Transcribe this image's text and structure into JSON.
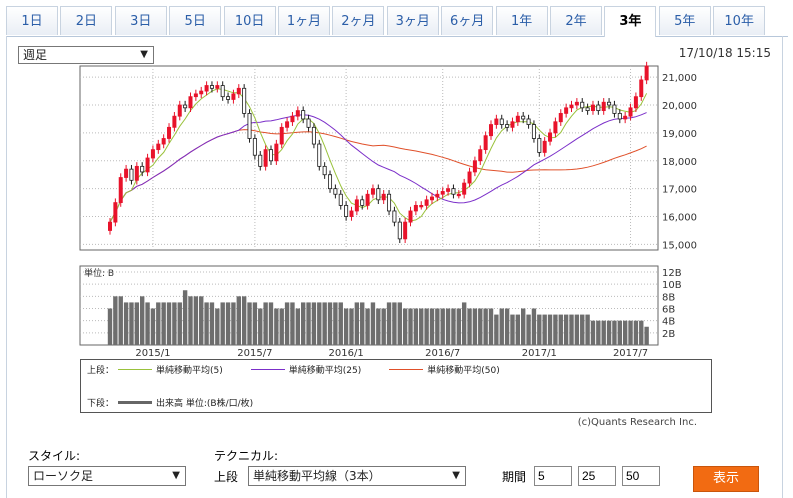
{
  "tabs": [
    {
      "label": "1日"
    },
    {
      "label": "2日"
    },
    {
      "label": "3日"
    },
    {
      "label": "5日"
    },
    {
      "label": "10日"
    },
    {
      "label": "1ヶ月"
    },
    {
      "label": "2ヶ月"
    },
    {
      "label": "3ヶ月"
    },
    {
      "label": "6ヶ月"
    },
    {
      "label": "1年"
    },
    {
      "label": "2年"
    },
    {
      "label": "3年",
      "active": true
    },
    {
      "label": "5年"
    },
    {
      "label": "10年"
    }
  ],
  "period_select": {
    "value": "週足"
  },
  "timestamp": "17/10/18 15:15",
  "legend": {
    "upper_label": "上段：",
    "lower_label": "下段：",
    "ma_items": [
      {
        "label": "単純移動平均(5)",
        "color": "#9ac23c"
      },
      {
        "label": "単純移動平均(25)",
        "color": "#7b2fc9"
      },
      {
        "label": "単純移動平均(50)",
        "color": "#e0502a"
      }
    ],
    "volume_item": "出来高 単位:(B株/口/枚)"
  },
  "credit": "(c)Quants Research Inc.",
  "controls": {
    "style_label": "スタイル:",
    "style_value": "ローソク足",
    "tech_label": "テクニカル:",
    "upper_label": "上段",
    "tech_value": "単純移動平均線（3本）",
    "period_label": "期間",
    "period_values": [
      "5",
      "25",
      "50"
    ],
    "submit_label": "表示"
  },
  "chart_data": {
    "type": "candlestick",
    "x_ticks": [
      "2015/1",
      "2015/7",
      "2016/1",
      "2016/7",
      "2017/1",
      "2017/7"
    ],
    "price_axis": {
      "ticks": [
        "15,000",
        "16,000",
        "17,000",
        "18,000",
        "19,000",
        "20,000",
        "21,000"
      ],
      "ylim": [
        14800,
        21400
      ]
    },
    "volume_axis": {
      "label": "単位: B",
      "ticks": [
        "2B",
        "4B",
        "6B",
        "8B",
        "10B",
        "12B"
      ],
      "ylim": [
        0,
        12
      ]
    },
    "closes": [
      15800,
      16500,
      17400,
      17700,
      17300,
      17800,
      17600,
      18100,
      18400,
      18600,
      18800,
      19200,
      19600,
      20000,
      19900,
      20300,
      20400,
      20500,
      20700,
      20600,
      20700,
      20300,
      20200,
      20400,
      20600,
      19700,
      18800,
      18200,
      17800,
      18400,
      18000,
      18600,
      19200,
      19400,
      19600,
      19800,
      19500,
      19200,
      18600,
      17800,
      17500,
      17000,
      16800,
      16400,
      16000,
      16200,
      16600,
      16400,
      16800,
      17000,
      16600,
      16800,
      16200,
      15800,
      15200,
      15800,
      16200,
      16400,
      16400,
      16600,
      16700,
      16800,
      16900,
      17000,
      16800,
      16800,
      17200,
      17600,
      18000,
      18400,
      18900,
      19300,
      19500,
      19300,
      19200,
      19400,
      19600,
      19500,
      19300,
      18800,
      18300,
      18700,
      19000,
      19400,
      19700,
      19900,
      20000,
      20100,
      19900,
      19800,
      20000,
      19800,
      20100,
      20000,
      19700,
      19500,
      19600,
      19900,
      20300,
      20900,
      21400
    ],
    "volume": [
      6,
      8,
      8,
      7,
      7,
      7,
      8,
      7,
      6,
      7,
      7,
      7,
      7,
      7,
      9,
      8,
      8,
      8,
      7,
      7,
      6,
      7,
      7,
      7,
      8,
      8,
      7,
      7,
      6,
      7,
      7,
      6,
      6,
      7,
      7,
      6,
      7,
      7,
      7,
      7,
      7,
      7,
      7,
      7,
      6,
      6,
      7,
      7,
      6,
      7,
      6,
      6,
      7,
      7,
      7,
      6,
      6,
      6,
      6,
      6,
      6,
      6,
      6,
      6,
      6,
      6,
      7,
      6,
      6,
      6,
      6,
      6,
      5,
      6,
      6,
      5,
      5,
      6,
      5,
      6,
      5,
      5,
      5,
      5,
      5,
      5,
      5,
      5,
      5,
      5,
      4,
      4,
      4,
      4,
      4,
      4,
      4,
      4,
      4,
      4,
      3
    ]
  }
}
